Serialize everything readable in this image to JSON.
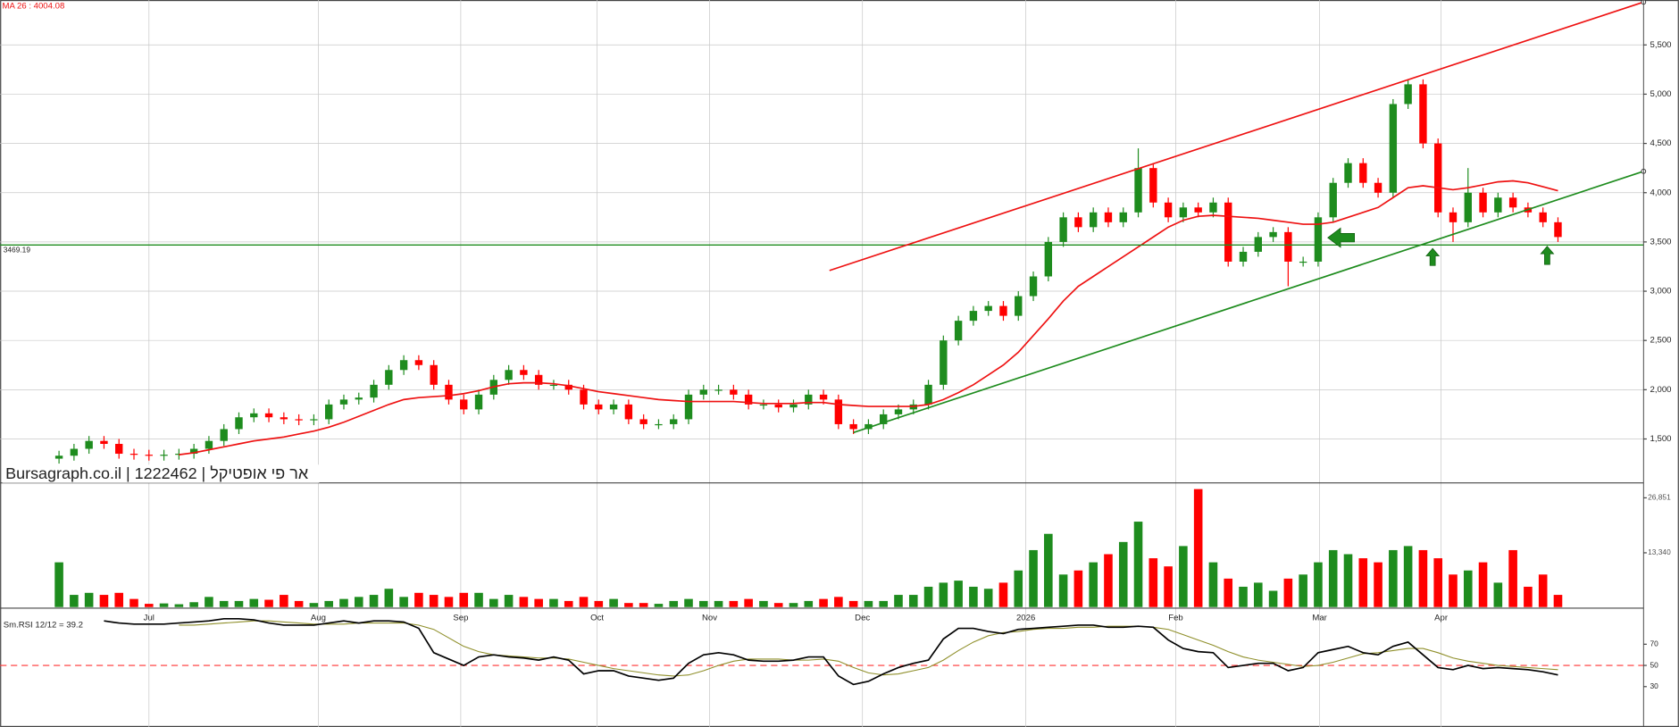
{
  "chart_data": [
    {
      "type": "candlestick",
      "title": "Bursagraph.co.il | 1222462 | אר פי אופטיקל",
      "annotation": "MA 26 : 4004.08",
      "xlim": [
        -3.93,
        105.71
      ],
      "xticks": [
        {
          "value": 6,
          "label": "Jul"
        },
        {
          "value": 17.3,
          "label": "Aug"
        },
        {
          "value": 26.8,
          "label": "Sep"
        },
        {
          "value": 35.9,
          "label": "Oct"
        },
        {
          "value": 43.4,
          "label": "Nov"
        },
        {
          "value": 53.6,
          "label": "Dec"
        },
        {
          "value": 64.5,
          "label": "2026"
        },
        {
          "value": 74.5,
          "label": "Feb"
        },
        {
          "value": 84.1,
          "label": "Mar"
        },
        {
          "value": 92.2,
          "label": "Apr"
        }
      ],
      "ylim": [
        1065,
        5956
      ],
      "yticks": [
        {
          "value": 1500,
          "label": "1,500"
        },
        {
          "value": 2000,
          "label": "2,000"
        },
        {
          "value": 2500,
          "label": "2,500"
        },
        {
          "value": 3000,
          "label": "3,000"
        },
        {
          "value": 3500,
          "label": "3,500"
        },
        {
          "value": 4000,
          "label": "4,000"
        },
        {
          "value": 4500,
          "label": "4,500"
        },
        {
          "value": 5000,
          "label": "5,000"
        },
        {
          "value": 5500,
          "label": "5,500"
        }
      ],
      "grid": true,
      "up_color": "#1e8c1e",
      "down_color": "#ff0000",
      "open": [
        1300,
        1330,
        1400,
        1480,
        1450,
        1350,
        1340,
        1330,
        1340,
        1350,
        1400,
        1480,
        1600,
        1720,
        1760,
        1720,
        1700,
        1690,
        1700,
        1850,
        1900,
        1920,
        2050,
        2200,
        2300,
        2250,
        2050,
        1900,
        1800,
        1950,
        2100,
        2200,
        2150,
        2050,
        2050,
        2000,
        1850,
        1800,
        1850,
        1700,
        1650,
        1650,
        1700,
        1950,
        2000,
        2000,
        1950,
        1850,
        1850,
        1820,
        1850,
        1950,
        1900,
        1650,
        1600,
        1650,
        1750,
        1800,
        1850,
        2050,
        2500,
        2700,
        2800,
        2850,
        2750,
        2950,
        3150,
        3500,
        3750,
        3650,
        3800,
        3700,
        3800,
        4250,
        3900,
        3750,
        3850,
        3800,
        3900,
        3300,
        3400,
        3550,
        3600,
        3300,
        3300,
        3750,
        4100,
        4300,
        4100,
        4000,
        4900,
        5100,
        4500,
        3800,
        3700,
        4000,
        3800,
        3950,
        3850,
        3800,
        3700
      ],
      "high": [
        1380,
        1450,
        1530,
        1530,
        1500,
        1400,
        1390,
        1390,
        1400,
        1450,
        1530,
        1650,
        1770,
        1810,
        1810,
        1770,
        1750,
        1750,
        1900,
        1950,
        1970,
        2100,
        2250,
        2350,
        2350,
        2300,
        2100,
        1950,
        2000,
        2150,
        2250,
        2250,
        2200,
        2100,
        2100,
        2050,
        1900,
        1900,
        1900,
        1750,
        1700,
        1750,
        2000,
        2050,
        2050,
        2050,
        2000,
        1900,
        1900,
        1900,
        2000,
        2000,
        1950,
        1700,
        1700,
        1800,
        1850,
        1900,
        2100,
        2550,
        2750,
        2850,
        2900,
        2900,
        3000,
        3200,
        3550,
        3800,
        3800,
        3850,
        3850,
        3850,
        4450,
        4300,
        3950,
        3900,
        3900,
        3950,
        3950,
        3450,
        3600,
        3650,
        3650,
        3350,
        3800,
        4150,
        4350,
        4350,
        4150,
        4950,
        5150,
        5150,
        4550,
        3850,
        4250,
        4050,
        4000,
        4000,
        3900,
        3850,
        3750
      ],
      "low": [
        1250,
        1280,
        1350,
        1400,
        1300,
        1290,
        1280,
        1280,
        1290,
        1300,
        1350,
        1430,
        1550,
        1670,
        1670,
        1650,
        1640,
        1640,
        1650,
        1800,
        1850,
        1870,
        2000,
        2150,
        2200,
        2000,
        1850,
        1750,
        1750,
        1900,
        2050,
        2100,
        2000,
        2000,
        1950,
        1800,
        1750,
        1750,
        1650,
        1600,
        1600,
        1600,
        1650,
        1900,
        1950,
        1900,
        1800,
        1800,
        1770,
        1770,
        1800,
        1850,
        1600,
        1550,
        1550,
        1600,
        1700,
        1750,
        1800,
        2000,
        2450,
        2650,
        2750,
        2700,
        2700,
        2900,
        3100,
        3450,
        3600,
        3600,
        3650,
        3650,
        3750,
        3850,
        3700,
        3700,
        3750,
        3750,
        3250,
        3250,
        3350,
        3500,
        3050,
        3250,
        3250,
        3700,
        4050,
        4050,
        3950,
        3950,
        4850,
        4450,
        3750,
        3500,
        3650,
        3750,
        3750,
        3800,
        3750,
        3650,
        3500
      ],
      "close": [
        1330,
        1400,
        1480,
        1450,
        1350,
        1340,
        1330,
        1340,
        1350,
        1400,
        1480,
        1600,
        1720,
        1760,
        1720,
        1700,
        1690,
        1700,
        1850,
        1900,
        1920,
        2050,
        2200,
        2300,
        2250,
        2050,
        1900,
        1800,
        1950,
        2100,
        2200,
        2150,
        2050,
        2050,
        2000,
        1850,
        1800,
        1850,
        1700,
        1650,
        1650,
        1700,
        1950,
        2000,
        2000,
        1950,
        1850,
        1850,
        1820,
        1850,
        1950,
        1900,
        1650,
        1600,
        1650,
        1750,
        1800,
        1850,
        2050,
        2500,
        2700,
        2800,
        2850,
        2750,
        2950,
        3150,
        3500,
        3750,
        3650,
        3800,
        3700,
        3800,
        4250,
        3900,
        3750,
        3850,
        3800,
        3900,
        3300,
        3400,
        3550,
        3600,
        3300,
        3300,
        3750,
        4100,
        4300,
        4100,
        4000,
        4900,
        5100,
        4500,
        3800,
        3700,
        4000,
        3800,
        3950,
        3850,
        3800,
        3700,
        3550
      ],
      "series": [
        {
          "color": "#ee1111",
          "values": [
            null,
            null,
            null,
            null,
            null,
            null,
            null,
            null,
            1340,
            1360,
            1390,
            1420,
            1450,
            1480,
            1500,
            1520,
            1550,
            1580,
            1620,
            1670,
            1730,
            1790,
            1850,
            1900,
            1920,
            1930,
            1940,
            1960,
            1990,
            2030,
            2060,
            2070,
            2070,
            2060,
            2040,
            2010,
            1980,
            1960,
            1940,
            1920,
            1900,
            1890,
            1880,
            1880,
            1880,
            1880,
            1870,
            1860,
            1860,
            1860,
            1870,
            1870,
            1850,
            1840,
            1830,
            1830,
            1830,
            1830,
            1850,
            1900,
            1970,
            2050,
            2150,
            2250,
            2380,
            2550,
            2720,
            2900,
            3050,
            3150,
            3250,
            3350,
            3450,
            3550,
            3650,
            3720,
            3760,
            3770,
            3760,
            3750,
            3740,
            3720,
            3700,
            3680,
            3680,
            3700,
            3750,
            3800,
            3850,
            3950,
            4050,
            4070,
            4050,
            4030,
            4050,
            4080,
            4110,
            4120,
            4100,
            4060,
            4020
          ]
        }
      ],
      "hlines": [
        {
          "value": 3469.19,
          "label": "3469.19",
          "color": "#1e8c1e"
        }
      ],
      "trendlines": [
        {
          "color": "#ee1111",
          "x": [
            51.4,
            105.71
          ],
          "values": [
            3210,
            5935
          ]
        },
        {
          "color": "#1e8c1e",
          "x": [
            53,
            105.71
          ],
          "values": [
            1565,
            4217
          ]
        }
      ]
    },
    {
      "type": "volume",
      "ylim": [
        0,
        30000
      ],
      "yticks": [
        {
          "value": 13340,
          "label": "13,340"
        },
        {
          "value": 26851,
          "label": "26,851"
        }
      ],
      "values": [
        11000,
        3000,
        3500,
        3000,
        3500,
        2000,
        800,
        900,
        700,
        1200,
        2500,
        1500,
        1500,
        2000,
        1800,
        3000,
        1500,
        1000,
        1500,
        2000,
        2500,
        3000,
        4500,
        2500,
        3500,
        3000,
        2500,
        3500,
        3500,
        2000,
        3000,
        2500,
        2000,
        2000,
        1500,
        2500,
        1500,
        2000,
        1000,
        1000,
        800,
        1500,
        2000,
        1500,
        1500,
        1500,
        2000,
        1500,
        1000,
        1000,
        1500,
        2000,
        2500,
        1500,
        1500,
        1500,
        3000,
        3000,
        5000,
        6000,
        6500,
        5000,
        4500,
        6000,
        9000,
        14000,
        18000,
        8000,
        9000,
        11000,
        13000,
        16000,
        21000,
        12000,
        10000,
        15000,
        29000,
        11000,
        7000,
        5000,
        6000,
        4000,
        7000,
        8000,
        11000,
        14000,
        13000,
        12000,
        11000,
        14000,
        15000,
        14000,
        12000,
        8000,
        9000,
        11000,
        6000,
        14000,
        5000,
        8000,
        3000
      ]
    },
    {
      "type": "line",
      "title": "Sm.RSI 12/12 = 39.2",
      "ylim": [
        3,
        100
      ],
      "yticks": [
        30,
        50,
        70
      ],
      "hlines": [
        {
          "value": 50,
          "color": "#ff3333"
        }
      ],
      "series": [
        {
          "color": "#000000",
          "values": [
            null,
            null,
            null,
            92,
            90,
            89,
            89,
            89,
            90,
            91,
            92,
            94,
            94,
            93,
            90,
            88,
            88,
            88,
            90,
            92,
            90,
            92,
            92,
            91,
            85,
            62,
            56,
            50,
            58,
            60,
            58,
            57,
            55,
            58,
            55,
            42,
            45,
            45,
            40,
            38,
            36,
            38,
            52,
            60,
            62,
            60,
            55,
            54,
            54,
            55,
            58,
            58,
            40,
            32,
            35,
            42,
            48,
            52,
            55,
            75,
            85,
            85,
            82,
            80,
            84,
            85,
            86,
            87,
            88,
            88,
            86,
            86,
            87,
            86,
            74,
            66,
            63,
            62,
            48,
            50,
            52,
            52,
            45,
            48,
            62,
            65,
            68,
            62,
            60,
            68,
            72,
            60,
            48,
            46,
            50,
            47,
            48,
            47,
            46,
            44,
            41
          ]
        },
        {
          "color": "#8f8f2a",
          "values": [
            null,
            null,
            null,
            null,
            null,
            null,
            null,
            null,
            88,
            88,
            89,
            90,
            91,
            92,
            92,
            91,
            90,
            89,
            89,
            89,
            90,
            90,
            90,
            90,
            88,
            84,
            76,
            68,
            63,
            60,
            59,
            58,
            57,
            57,
            56,
            53,
            50,
            47,
            45,
            43,
            41,
            40,
            41,
            45,
            50,
            54,
            56,
            56,
            56,
            55,
            55,
            56,
            54,
            48,
            43,
            41,
            42,
            45,
            48,
            55,
            64,
            72,
            78,
            81,
            82,
            84,
            85,
            85,
            86,
            86,
            87,
            87,
            87,
            86,
            84,
            79,
            74,
            69,
            63,
            58,
            55,
            53,
            51,
            49,
            50,
            53,
            57,
            61,
            62,
            64,
            66,
            66,
            62,
            57,
            54,
            52,
            50,
            49,
            48,
            47,
            46
          ]
        }
      ]
    }
  ]
}
